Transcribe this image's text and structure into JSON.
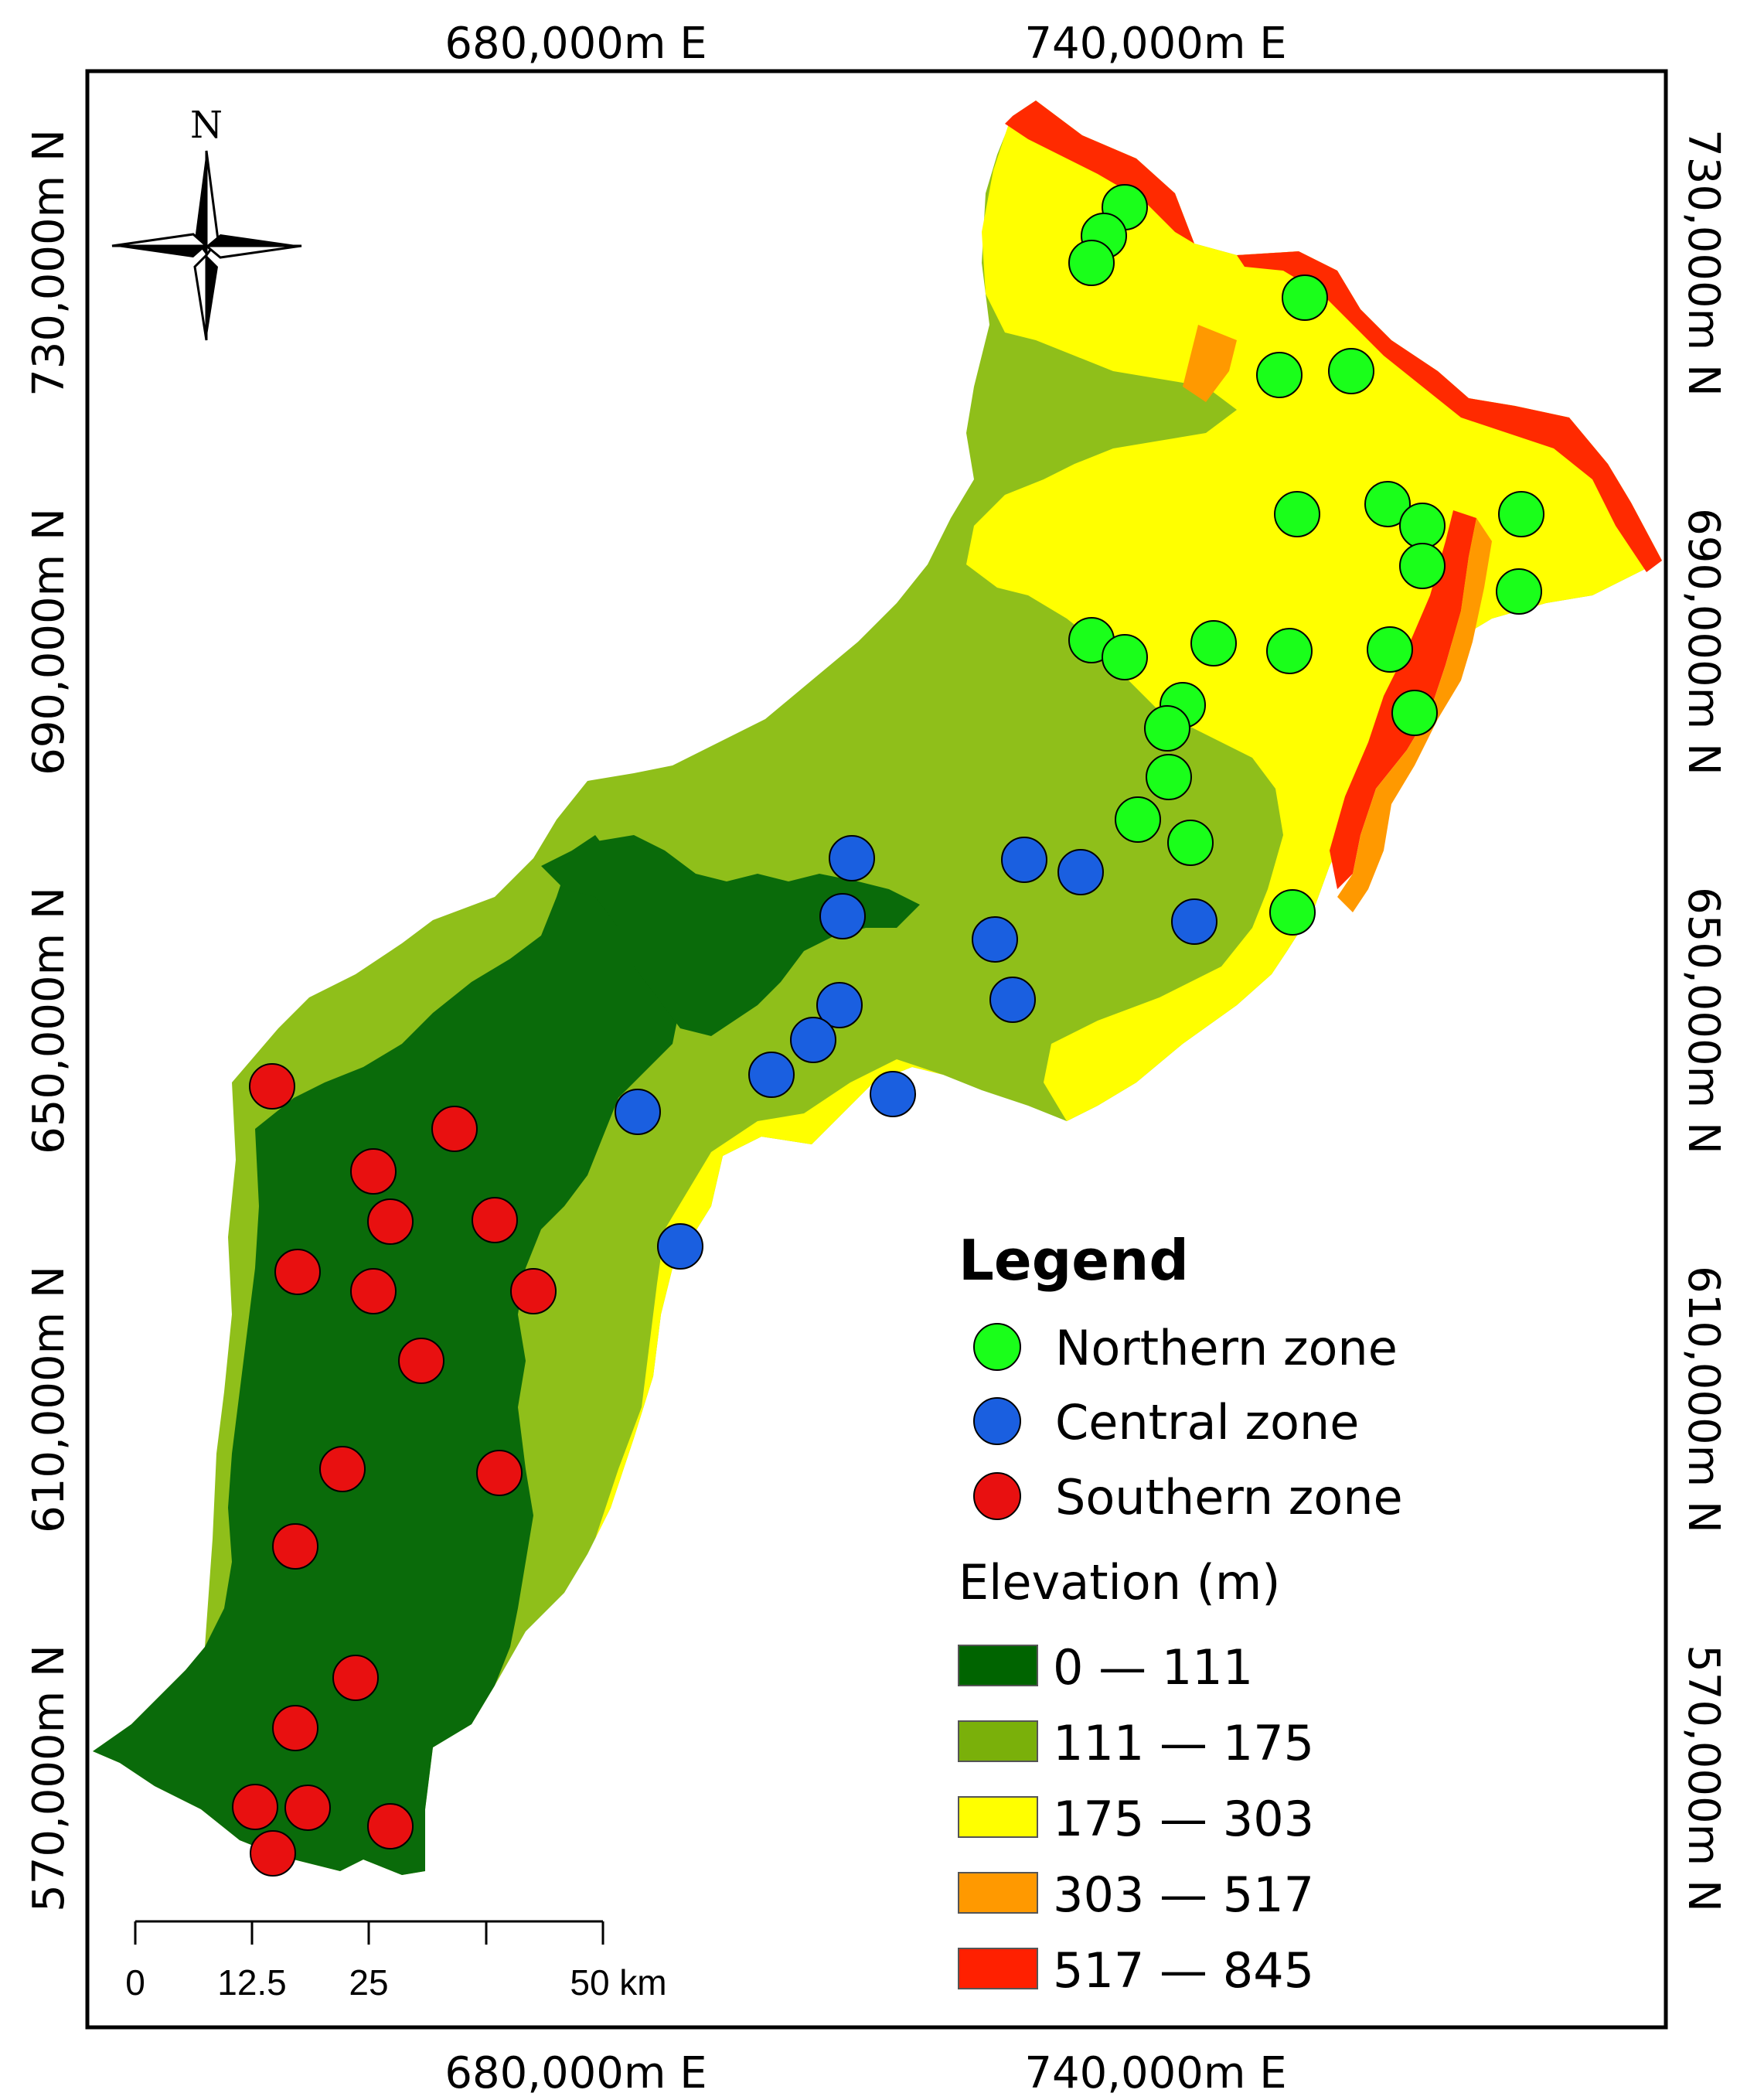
{
  "top_labels": [
    "680,000m E",
    "740,000m E"
  ],
  "bottom_labels": [
    "680,000m E",
    "740,000m E"
  ],
  "left_labels": [
    "730,000m N",
    "690,000m N",
    "650,000m N",
    "610,000m N",
    "570,000m N"
  ],
  "right_labels": [
    "730,000m N",
    "690,000m N",
    "650,000m N",
    "610,000m N",
    "570,000m N"
  ],
  "north_label": "N",
  "legend": {
    "title": "Legend",
    "zones": [
      {
        "label": "Northern zone",
        "color": "#1aff1a"
      },
      {
        "label": "Central zone",
        "color": "#1a5fe0"
      },
      {
        "label": "Southern zone",
        "color": "#e81010"
      }
    ],
    "elevation_title": "Elevation (m)",
    "elevation_classes": [
      {
        "label": "0 — 111",
        "color": "#006400"
      },
      {
        "label": "111 — 175",
        "color": "#7ab00a"
      },
      {
        "label": "175 — 303",
        "color": "#ffff00"
      },
      {
        "label": "303 — 517",
        "color": "#ff9900"
      },
      {
        "label": "517 — 845",
        "color": "#ff2000"
      }
    ]
  },
  "scale_bar": {
    "labels": [
      "0",
      "12.5",
      "25",
      "50 km"
    ]
  },
  "colors": {
    "northern": "#1aff1a",
    "central": "#1a5fe0",
    "southern": "#e81010"
  }
}
